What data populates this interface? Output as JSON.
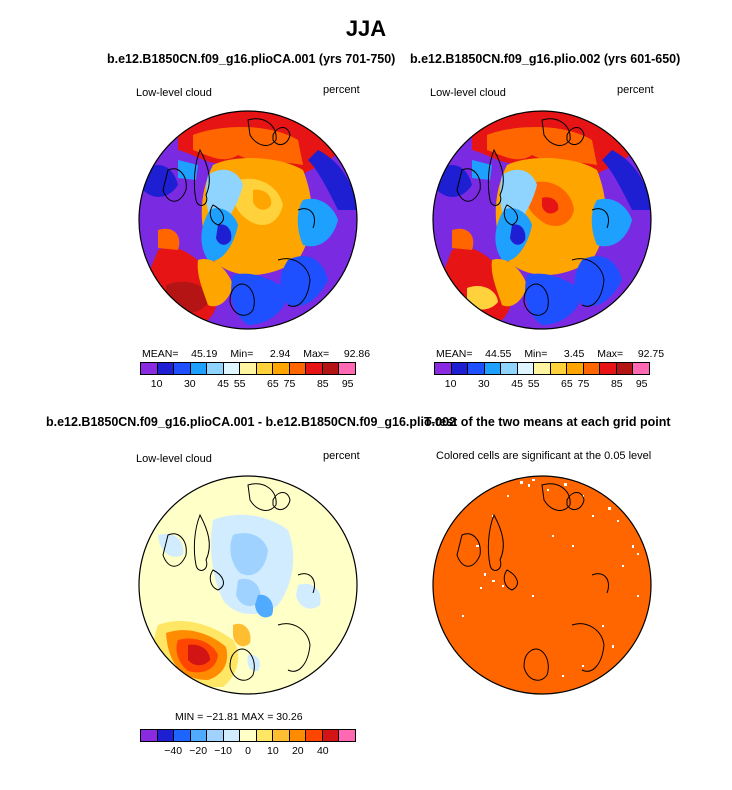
{
  "figure": {
    "title": "JJA",
    "panels": [
      {
        "title": "b.e12.B1850CN.f09_g16.plioCA.001 (yrs 701-750)",
        "variable": "Low-level cloud",
        "units": "percent",
        "stats": {
          "mean_label": "MEAN=",
          "mean": "45.19",
          "min_label": "Min=",
          "min": "2.94",
          "max_label": "Max=",
          "max": "92.86"
        },
        "colorbar_labels": [
          "10",
          "30",
          "45",
          "55",
          "65",
          "75",
          "85",
          "95"
        ]
      },
      {
        "title": "b.e12.B1850CN.f09_g16.plio.002 (yrs 601-650)",
        "variable": "Low-level cloud",
        "units": "percent",
        "stats": {
          "mean_label": "MEAN=",
          "mean": "44.55",
          "min_label": "Min=",
          "min": "3.45",
          "max_label": "Max=",
          "max": "92.75"
        },
        "colorbar_labels": [
          "10",
          "30",
          "45",
          "55",
          "65",
          "75",
          "85",
          "95"
        ]
      },
      {
        "title": "b.e12.B1850CN.f09_g16.plioCA.001 - b.e12.B1850CN.f09_g16.plio.002",
        "variable": "Low-level cloud",
        "units": "percent",
        "stats_text": "MIN = −21.81  MAX =   30.26",
        "colorbar_labels": [
          "−40",
          "−20",
          "−10",
          "0",
          "10",
          "20",
          "40"
        ]
      },
      {
        "title": "T-test of the two means at each grid point",
        "subtitle": "Colored cells are significant at the 0.05 level"
      }
    ]
  },
  "colors": {
    "abs_scale": [
      "#8a2be2",
      "#1e1ed2",
      "#1e50ff",
      "#1ea0ff",
      "#8fd3ff",
      "#dff5ff",
      "#fff5a0",
      "#ffd23c",
      "#ffa500",
      "#ff6600",
      "#e61414",
      "#b41414",
      "#ff69b4"
    ],
    "diff_scale": [
      "#8a2be2",
      "#1e1ed2",
      "#1e64ff",
      "#50aaff",
      "#a0d2ff",
      "#d2ecff",
      "#ffffc8",
      "#ffe664",
      "#ffbe32",
      "#ff8c00",
      "#ff4600",
      "#d21414",
      "#ff69b4"
    ],
    "significance": "#ff6600"
  }
}
